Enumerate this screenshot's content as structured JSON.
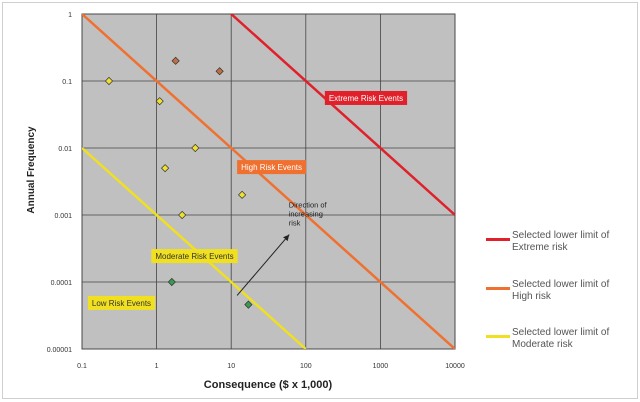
{
  "chart_data": {
    "type": "scatter",
    "xlabel": "Consequence ($ x 1,000)",
    "ylabel": "Annual Frequency",
    "x_scale": "log",
    "y_scale": "log",
    "xlim": [
      0.1,
      10000
    ],
    "ylim": [
      1e-05,
      1
    ],
    "x_ticks": [
      "0.1",
      "1",
      "10",
      "100",
      "1000",
      "10000"
    ],
    "y_ticks": [
      "1",
      "0.1",
      "0.01",
      "0.001",
      "0.0001",
      "0.00001"
    ],
    "grid": true,
    "plot_background": "#c0c0c0",
    "risk_lines": [
      {
        "name": "Selected lower limit of Extreme risk",
        "color": "#e0202a",
        "points": [
          [
            10,
            1
          ],
          [
            10000,
            0.001
          ]
        ]
      },
      {
        "name": "Selected lower limit of High risk",
        "color": "#f07030",
        "points": [
          [
            0.1,
            1
          ],
          [
            10000,
            1e-05
          ]
        ]
      },
      {
        "name": "Selected lower limit of Moderate risk",
        "color": "#f0e020",
        "points": [
          [
            0.1,
            0.01
          ],
          [
            100,
            1e-05
          ]
        ]
      }
    ],
    "region_labels": [
      {
        "text": "Extreme Risk Events",
        "x": 180,
        "y": 0.071,
        "bg": "#e0202a",
        "fg": "#ffffff"
      },
      {
        "text": "High Risk Events",
        "x": 12,
        "y": 0.0066,
        "bg": "#f07030",
        "fg": "#ffffff"
      },
      {
        "text": "Moderate Risk Events",
        "x": 0.85,
        "y": 0.00031,
        "bg": "#f0e020",
        "fg": "#333333"
      },
      {
        "text": "Low Risk Events",
        "x": 0.12,
        "y": 6.2e-05,
        "bg": "#f0e020",
        "fg": "#333333"
      }
    ],
    "annotation": {
      "text_lines": [
        "Direction of",
        "increasing",
        "risk"
      ],
      "x": 59,
      "y": 0.0013
    },
    "arrow": {
      "from": [
        12,
        6.3e-05
      ],
      "to": [
        60,
        0.00051
      ]
    },
    "series": [
      {
        "name": "",
        "color": "#f0e030",
        "points": [
          [
            0.23,
            0.1
          ],
          [
            1.1,
            0.05
          ],
          [
            1.3,
            0.005
          ],
          [
            2.2,
            0.001
          ],
          [
            3.3,
            0.01
          ],
          [
            14,
            0.002
          ]
        ]
      },
      {
        "name": "",
        "color": "#c07040",
        "points": [
          [
            1.8,
            0.2
          ],
          [
            7,
            0.14
          ]
        ]
      },
      {
        "name": "",
        "color": "#3a9a50",
        "points": [
          [
            1.6,
            0.0001
          ],
          [
            17,
            4.6e-05
          ]
        ]
      }
    ]
  },
  "legend": [
    {
      "line1": "Selected lower limit of",
      "line2": "Extreme risk",
      "color": "#e0202a"
    },
    {
      "line1": "Selected lower limit of",
      "line2": "High risk",
      "color": "#f07030"
    },
    {
      "line1": "Selected lower limit of",
      "line2": "Moderate risk",
      "color": "#f0e020"
    }
  ]
}
